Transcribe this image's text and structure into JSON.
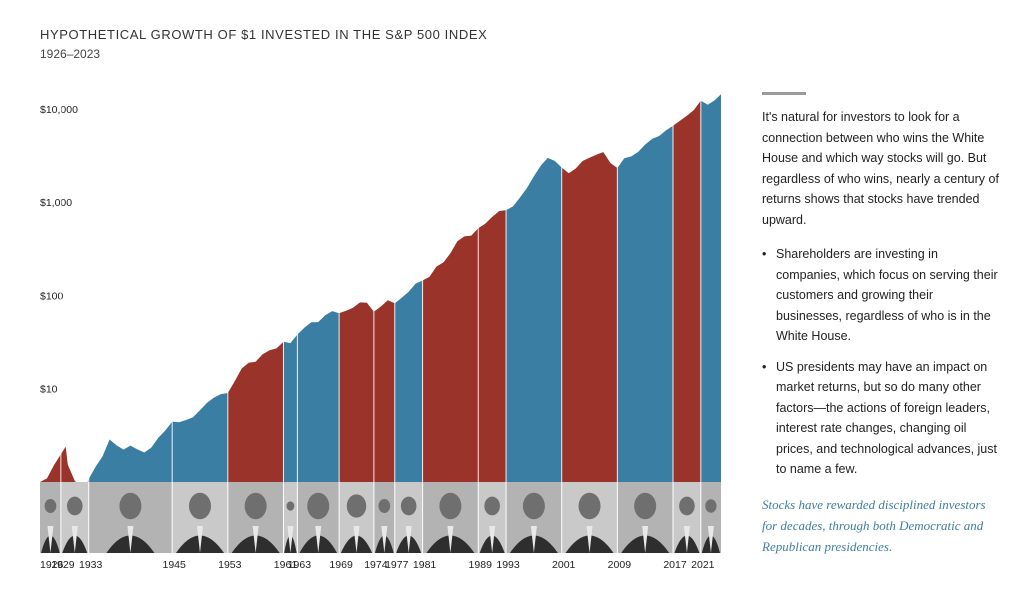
{
  "chart_data": {
    "type": "area",
    "title": "HYPOTHETICAL GROWTH OF $1 INVESTED IN THE S&P 500 INDEX",
    "subtitle": "1926–2023",
    "y_scale": "log",
    "y_ticks": [
      {
        "value": 10,
        "label": "$10"
      },
      {
        "value": 100,
        "label": "$100"
      },
      {
        "value": 1000,
        "label": "$1,000"
      },
      {
        "value": 10000,
        "label": "$10,000"
      }
    ],
    "ylim": [
      1,
      15000
    ],
    "xlim": [
      1926,
      2023.9
    ],
    "x_tick_labels": [
      "1926",
      "1929",
      "1933",
      "1945",
      "1953",
      "1961",
      "1963",
      "1969",
      "1974",
      "1977",
      "1981",
      "1989",
      "1993",
      "2001",
      "2009",
      "2017",
      "2021"
    ],
    "colors": {
      "republican": "#9a3329",
      "democrat": "#3a7ea4"
    },
    "presidencies": [
      {
        "start": 1926,
        "end": 1929,
        "party": "republican"
      },
      {
        "start": 1929,
        "end": 1933,
        "party": "republican"
      },
      {
        "start": 1933,
        "end": 1945,
        "party": "democrat"
      },
      {
        "start": 1945,
        "end": 1953,
        "party": "democrat"
      },
      {
        "start": 1953,
        "end": 1961,
        "party": "republican"
      },
      {
        "start": 1961,
        "end": 1963,
        "party": "democrat"
      },
      {
        "start": 1963,
        "end": 1969,
        "party": "democrat"
      },
      {
        "start": 1969,
        "end": 1974,
        "party": "republican"
      },
      {
        "start": 1974,
        "end": 1977,
        "party": "republican"
      },
      {
        "start": 1977,
        "end": 1981,
        "party": "democrat"
      },
      {
        "start": 1981,
        "end": 1989,
        "party": "republican"
      },
      {
        "start": 1989,
        "end": 1993,
        "party": "republican"
      },
      {
        "start": 1993,
        "end": 2001,
        "party": "democrat"
      },
      {
        "start": 2001,
        "end": 2009,
        "party": "republican"
      },
      {
        "start": 2009,
        "end": 2017,
        "party": "democrat"
      },
      {
        "start": 2017,
        "end": 2021,
        "party": "republican"
      },
      {
        "start": 2021,
        "end": 2023.9,
        "party": "democrat"
      }
    ],
    "series": [
      {
        "x": [
          1926,
          1927,
          1928,
          1929.7,
          1930,
          1931,
          1932.4,
          1933,
          1934,
          1935,
          1936,
          1937,
          1938,
          1939,
          1940,
          1941,
          1942,
          1943,
          1944,
          1945,
          1946,
          1947,
          1948,
          1949,
          1950,
          1951,
          1952,
          1953,
          1954,
          1955,
          1956,
          1957,
          1958,
          1959,
          1960,
          1961,
          1962,
          1963,
          1964,
          1965,
          1966,
          1967,
          1968,
          1969,
          1970,
          1971,
          1972,
          1973,
          1974,
          1975,
          1976,
          1977,
          1978,
          1979,
          1980,
          1981,
          1982,
          1983,
          1984,
          1985,
          1986,
          1987,
          1988,
          1989,
          1990,
          1991,
          1992,
          1993,
          1994,
          1995,
          1996,
          1997,
          1998,
          1999,
          2000,
          2001,
          2002,
          2003,
          2004,
          2005,
          2006,
          2007,
          2008,
          2009,
          2010,
          2011,
          2012,
          2013,
          2014,
          2015,
          2016,
          2017,
          2018,
          2019,
          2020,
          2021,
          2022,
          2023,
          2023.9
        ],
        "y": [
          1.0,
          1.12,
          1.55,
          2.4,
          1.5,
          1.0,
          0.8,
          1.1,
          1.5,
          1.9,
          2.8,
          2.4,
          2.2,
          2.5,
          2.3,
          2.1,
          2.3,
          2.9,
          3.5,
          4.5,
          4.5,
          4.7,
          4.9,
          5.7,
          6.9,
          8.1,
          9.0,
          9.2,
          12.0,
          16.0,
          18.5,
          19.5,
          24.0,
          26.5,
          27.0,
          31.0,
          30.0,
          38.0,
          46.0,
          53.0,
          52.0,
          60.0,
          66.0,
          64.0,
          70.0,
          76.0,
          85.0,
          82.0,
          65.0,
          75.0,
          90.0,
          85.0,
          96.0,
          108.0,
          130.0,
          142.0,
          160.0,
          210.0,
          230.0,
          280.0,
          370.0,
          420.0,
          440.0,
          540.0,
          600.0,
          690.0,
          780.0,
          800.0,
          900.0,
          1150.0,
          1450.0,
          1900.0,
          2400.0,
          2900.0,
          2750.0,
          2400.0,
          2100.0,
          2300.0,
          2700.0,
          2900.0,
          3200.0,
          3500.0,
          2700.0,
          2350.0,
          2900.0,
          3000.0,
          3400.0,
          4200.0,
          4900.0,
          5200.0,
          5800.0,
          6400.0,
          7300.0,
          8500.0,
          10000.0,
          12500.0,
          11000.0,
          12000.0,
          14000.0
        ]
      }
    ]
  },
  "side": {
    "intro": "It's natural for investors to look for a connection between who wins the White House and which way stocks will go. But regardless of who wins, nearly a century of returns shows that stocks have trended upward.",
    "bullets": [
      "Shareholders are investing in companies, which focus on serving their customers and growing their businesses, regardless of who is in the White House.",
      "US presidents may have an impact on market returns, but so do many other factors—the actions of foreign leaders, interest rate changes, changing oil prices, and technological advances, just to name a few."
    ],
    "callout": "Stocks have rewarded disciplined investors for decades, through both Democratic and Republican presidencies."
  }
}
